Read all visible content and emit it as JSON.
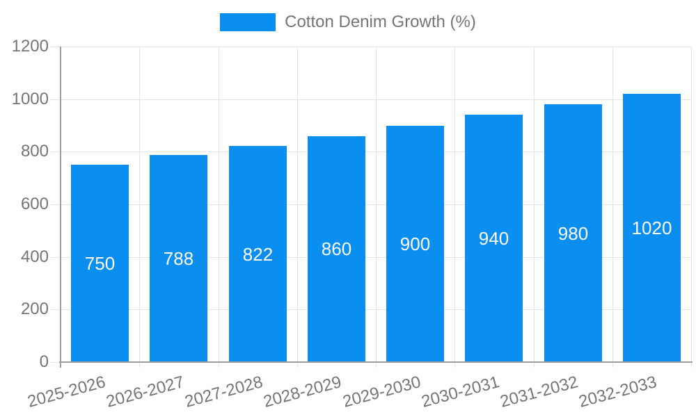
{
  "legend": {
    "label": "Cotton Denim Growth (%)"
  },
  "chart_data": {
    "type": "bar",
    "title": "",
    "xlabel": "",
    "ylabel": "",
    "categories": [
      "2025-2026",
      "2026-2027",
      "2027-2028",
      "2028-2029",
      "2029-2030",
      "2030-2031",
      "2031-2032",
      "2032-2033"
    ],
    "series": [
      {
        "name": "Cotton Denim Growth (%)",
        "values": [
          750,
          788,
          822,
          860,
          900,
          940,
          980,
          1020
        ]
      }
    ],
    "ylim": [
      0,
      1200
    ],
    "yticks": [
      0,
      200,
      400,
      600,
      800,
      1000,
      1200
    ],
    "grid": true,
    "legend_position": "top-center",
    "x_label_rotation_deg": -15,
    "colors": {
      "bar": "#0a8ff0",
      "value_label": "#ffffff",
      "axis_text": "#757575",
      "grid_line": "#e4e4e4",
      "axis_line": "#9e9e9e",
      "background": "#ffffff"
    }
  }
}
